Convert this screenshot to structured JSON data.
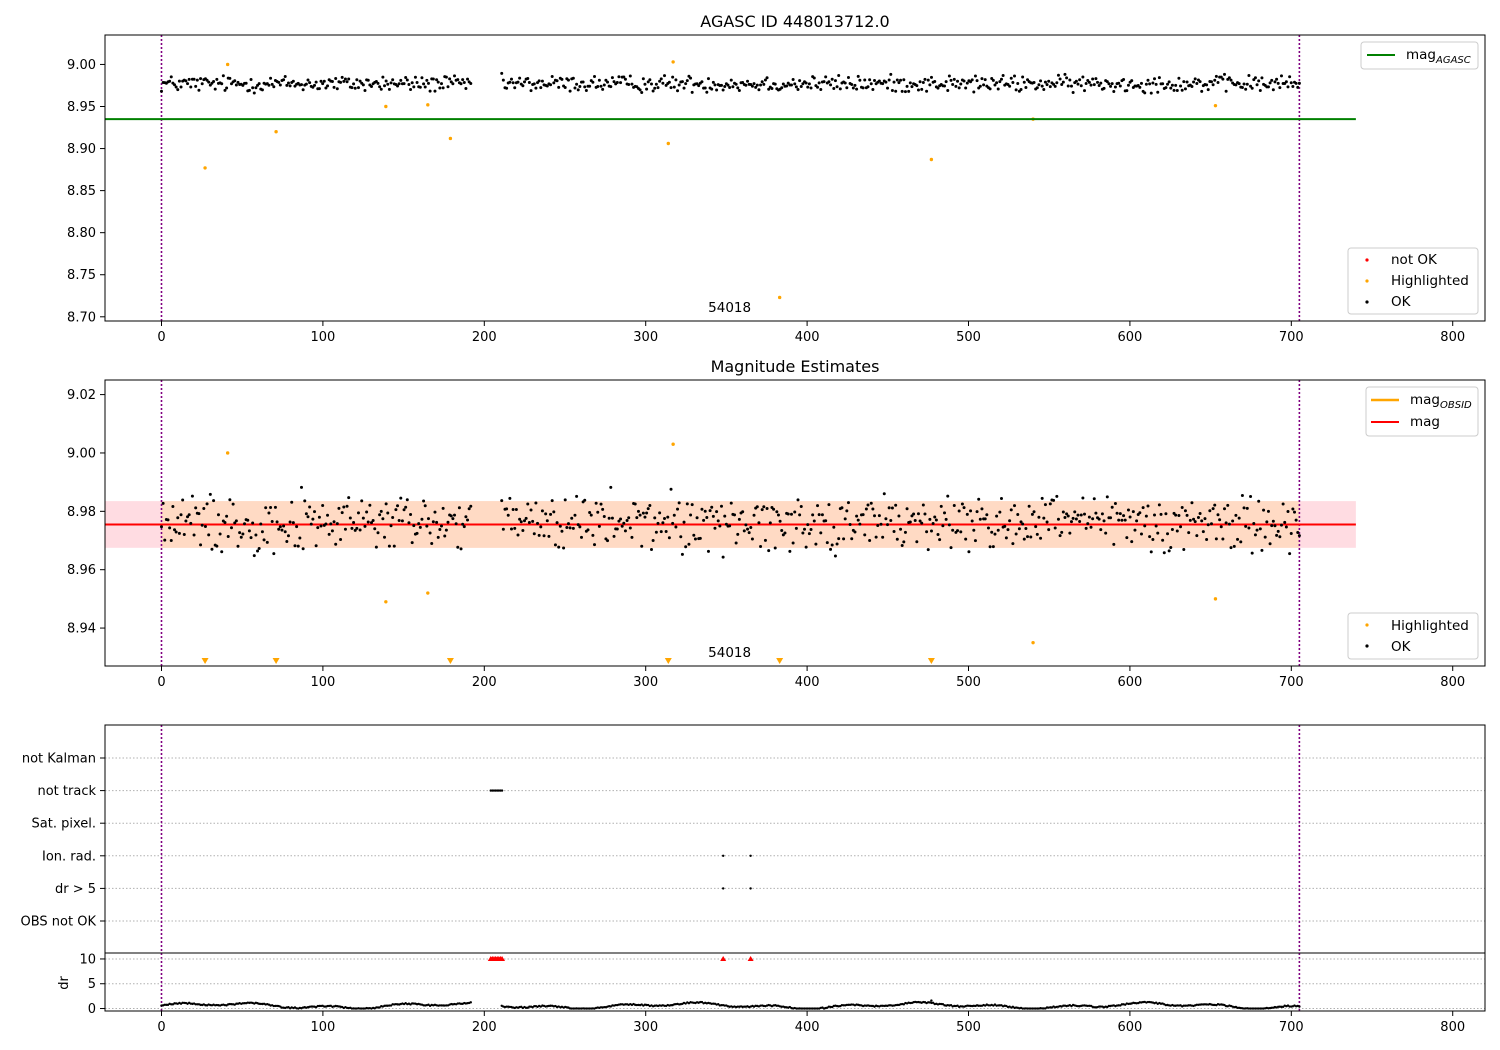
{
  "chart_data": [
    {
      "type": "scatter",
      "title": "AGASC ID 448013712.0",
      "xlim": [
        -35,
        820
      ],
      "ylim": [
        8.695,
        9.035
      ],
      "x_ticks": [
        "0",
        "100",
        "200",
        "300",
        "400",
        "500",
        "600",
        "700",
        "800"
      ],
      "x_tick_values": [
        0,
        100,
        200,
        300,
        400,
        500,
        600,
        700,
        800
      ],
      "y_ticks": [
        "8.70",
        "8.75",
        "8.80",
        "8.85",
        "8.90",
        "8.95",
        "9.00"
      ],
      "y_tick_values": [
        8.7,
        8.75,
        8.8,
        8.85,
        8.9,
        8.95,
        9.0
      ],
      "vlines": [
        0,
        705
      ],
      "vline_color": "#800080",
      "hline": {
        "y": 8.935,
        "x0": -35,
        "x1": 740,
        "color": "#008000"
      },
      "annotation": {
        "text": "54018",
        "x": 352
      },
      "ok_points": {
        "n": 700,
        "x_max": 705,
        "center": 8.977,
        "spread": 0.009,
        "gaps": [
          [
            192,
            210
          ]
        ],
        "color": "#000000"
      },
      "highlighted_points": {
        "color": "#ffa500",
        "x": [
          27,
          41,
          71,
          139,
          165,
          179,
          314,
          317,
          383,
          477,
          540,
          653
        ],
        "y": [
          8.877,
          9.0,
          8.92,
          8.95,
          8.952,
          8.912,
          8.906,
          9.003,
          8.723,
          8.887,
          8.935,
          8.951
        ]
      },
      "legend_top": {
        "entries": [
          "mag$_{AGASC}$"
        ],
        "label_main": "mag",
        "label_sub": "AGASC",
        "placement": "upper right"
      },
      "legend_bottom": {
        "entries": [
          "not OK",
          "Highlighted",
          "OK"
        ],
        "colors": [
          "#ff0000",
          "#ffa500",
          "#000000"
        ],
        "placement": "lower right"
      }
    },
    {
      "type": "scatter",
      "title": "Magnitude Estimates",
      "xlim": [
        -35,
        820
      ],
      "ylim": [
        8.927,
        9.025
      ],
      "x_ticks": [
        "0",
        "100",
        "200",
        "300",
        "400",
        "500",
        "600",
        "700",
        "800"
      ],
      "x_tick_values": [
        0,
        100,
        200,
        300,
        400,
        500,
        600,
        700,
        800
      ],
      "y_ticks": [
        "8.94",
        "8.96",
        "8.98",
        "9.00",
        "9.02"
      ],
      "y_tick_values": [
        8.94,
        8.96,
        8.98,
        9.0,
        9.02
      ],
      "vlines": [
        0,
        705
      ],
      "vline_color": "#800080",
      "mag_line": {
        "y": 8.9755,
        "x0": -35,
        "x1": 740,
        "color": "#ff0000"
      },
      "mag_band": {
        "y0": 8.9675,
        "y1": 8.9835,
        "x0": -35,
        "x1": 740,
        "color": "#ffc0cb"
      },
      "obsid_band": {
        "y0": 8.9675,
        "y1": 8.9835,
        "x0": 0,
        "x1": 705,
        "color": "#ffdab9"
      },
      "annotation": {
        "text": "54018",
        "x": 352
      },
      "ok_points": {
        "n": 700,
        "x_max": 705,
        "center": 8.976,
        "spread": 0.009,
        "gaps": [
          [
            192,
            210
          ]
        ],
        "color": "#000000"
      },
      "highlighted_points": {
        "color": "#ffa500",
        "x": [
          41,
          139,
          165,
          317,
          540,
          653
        ],
        "y": [
          9.0,
          8.949,
          8.952,
          9.003,
          8.935,
          8.95
        ]
      },
      "offscale_markers": {
        "x": [
          27,
          71,
          179,
          314,
          383,
          477
        ],
        "color": "#ffa500"
      },
      "legend_top": {
        "entries": [
          "mag$_{OBSID}$",
          "mag"
        ],
        "label_main": "mag",
        "label_sub": "OBSID",
        "label_mag": "mag",
        "colors": [
          "#ffa500",
          "#ff0000"
        ],
        "placement": "upper right"
      },
      "legend_bottom": {
        "entries": [
          "Highlighted",
          "OK"
        ],
        "colors": [
          "#ffa500",
          "#000000"
        ],
        "placement": "lower right"
      }
    },
    {
      "type": "scatter",
      "title": "",
      "xlim": [
        -35,
        820
      ],
      "x_ticks": [
        "0",
        "100",
        "200",
        "300",
        "400",
        "500",
        "600",
        "700",
        "800"
      ],
      "x_tick_values": [
        0,
        100,
        200,
        300,
        400,
        500,
        600,
        700,
        800
      ],
      "vlines": [
        0,
        705
      ],
      "vline_color": "#800080",
      "flag_rows": [
        "not Kalman",
        "not track",
        "Sat. pixel.",
        "Ion. rad.",
        "dr > 5",
        "OBS not OK"
      ],
      "flag_points": [
        {
          "row": "not track",
          "x": [
            204,
            205,
            206,
            207,
            208,
            209,
            210,
            211
          ]
        },
        {
          "row": "Ion. rad.",
          "x": [
            348,
            365
          ]
        },
        {
          "row": "dr > 5",
          "x": [
            348,
            365
          ]
        }
      ],
      "dr_panel": {
        "ylabel": "dr",
        "ylim": [
          -0.5,
          11
        ],
        "y_ticks": [
          "0",
          "5",
          "10"
        ],
        "y_tick_values": [
          0,
          5,
          10
        ],
        "baseline": {
          "n": 700,
          "x_max": 705,
          "gaps": [
            [
              192,
              210
            ]
          ]
        },
        "spikes": [
          {
            "x": 477,
            "y": 1.6
          }
        ],
        "clipped_markers": {
          "x": [
            204,
            205,
            206,
            207,
            208,
            209,
            210,
            211,
            348,
            365
          ],
          "y": 10,
          "color": "#ff0000"
        }
      }
    }
  ]
}
